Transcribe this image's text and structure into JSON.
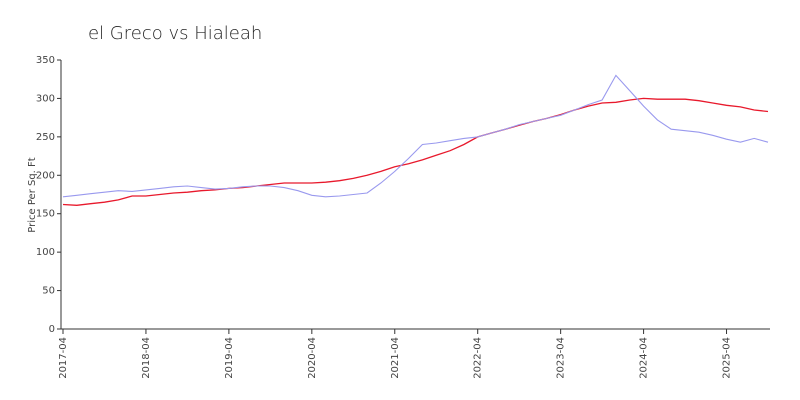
{
  "chart_data": {
    "type": "line",
    "title": "el Greco vs Hialeah",
    "y_label": "Price Per Sq. Ft",
    "categories": [
      "2017-04",
      null,
      null,
      null,
      null,
      null,
      "2018-04",
      null,
      null,
      null,
      null,
      null,
      "2019-04",
      null,
      null,
      null,
      null,
      null,
      "2020-04",
      null,
      null,
      null,
      null,
      null,
      "2021-04",
      null,
      null,
      null,
      null,
      null,
      "2022-04",
      null,
      null,
      null,
      null,
      null,
      "2023-04",
      null,
      null,
      null,
      null,
      null,
      "2024-04",
      null,
      null,
      null,
      null,
      null,
      "2025-04",
      null,
      null,
      null
    ],
    "series": [
      {
        "color": "#e8192c",
        "values": [
          162,
          161,
          163,
          165,
          168,
          173,
          173,
          175,
          177,
          178,
          180,
          181,
          183,
          184,
          186,
          188,
          190,
          190,
          190,
          191,
          193,
          196,
          200,
          205,
          211,
          215,
          220,
          226,
          232,
          240,
          250,
          255,
          260,
          265,
          270,
          274,
          279,
          285,
          290,
          294,
          295,
          298,
          300,
          299,
          299,
          299,
          297,
          294,
          291,
          289,
          285,
          283
        ]
      },
      {
        "color": "#9999ee",
        "values": [
          172,
          174,
          176,
          178,
          180,
          179,
          181,
          183,
          185,
          186,
          184,
          182,
          183,
          185,
          186,
          186,
          184,
          180,
          174,
          172,
          173,
          175,
          177,
          190,
          205,
          222,
          240,
          242,
          245,
          248,
          250,
          255,
          260,
          266,
          270,
          274,
          278,
          285,
          292,
          298,
          330,
          310,
          290,
          272,
          260,
          258,
          256,
          252,
          247,
          243,
          248,
          243
        ]
      }
    ],
    "ylim": [
      0,
      350
    ],
    "yticks": [
      0,
      50,
      100,
      150,
      200,
      250,
      300,
      350
    ]
  }
}
